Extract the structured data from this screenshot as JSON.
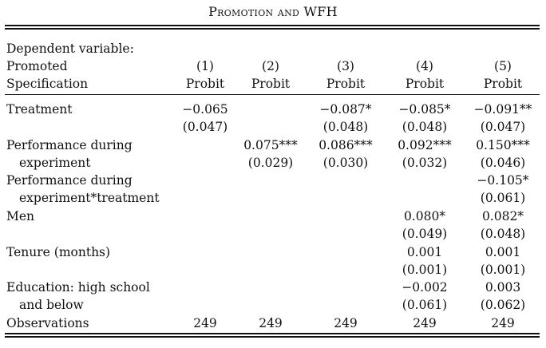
{
  "title": "Promotion and WFH",
  "header": {
    "dependent_variable_label": "Dependent variable:",
    "dependent_variable": "Promoted",
    "specification_label": "Specification",
    "columns": [
      {
        "number": "(1)",
        "model": "Probit"
      },
      {
        "number": "(2)",
        "model": "Probit"
      },
      {
        "number": "(3)",
        "model": "Probit"
      },
      {
        "number": "(4)",
        "model": "Probit"
      },
      {
        "number": "(5)",
        "model": "Probit"
      }
    ]
  },
  "rows": [
    {
      "label": [
        "Treatment"
      ],
      "coef": [
        "−0.065",
        "",
        "−0.087*",
        "−0.085*",
        "−0.091**"
      ],
      "se": [
        "(0.047)",
        "",
        "(0.048)",
        "(0.048)",
        "(0.047)"
      ]
    },
    {
      "label": [
        "Performance during",
        "experiment"
      ],
      "coef": [
        "",
        "0.075***",
        "0.086***",
        "0.092***",
        "0.150***"
      ],
      "se": [
        "",
        "(0.029)",
        "(0.030)",
        "(0.032)",
        "(0.046)"
      ]
    },
    {
      "label": [
        "Performance during",
        "experiment*treatment"
      ],
      "coef": [
        "",
        "",
        "",
        "",
        "−0.105*"
      ],
      "se": [
        "",
        "",
        "",
        "",
        "(0.061)"
      ]
    },
    {
      "label": [
        "Men"
      ],
      "coef": [
        "",
        "",
        "",
        "0.080*",
        "0.082*"
      ],
      "se": [
        "",
        "",
        "",
        "(0.049)",
        "(0.048)"
      ]
    },
    {
      "label": [
        "Tenure (months)"
      ],
      "coef": [
        "",
        "",
        "",
        "0.001",
        "0.001"
      ],
      "se": [
        "",
        "",
        "",
        "(0.001)",
        "(0.001)"
      ]
    },
    {
      "label": [
        "Education: high school",
        "and below"
      ],
      "coef": [
        "",
        "",
        "",
        "−0.002",
        "0.003"
      ],
      "se": [
        "",
        "",
        "",
        "(0.061)",
        "(0.062)"
      ]
    }
  ],
  "observations": {
    "label": "Observations",
    "values": [
      "249",
      "249",
      "249",
      "249",
      "249"
    ]
  }
}
